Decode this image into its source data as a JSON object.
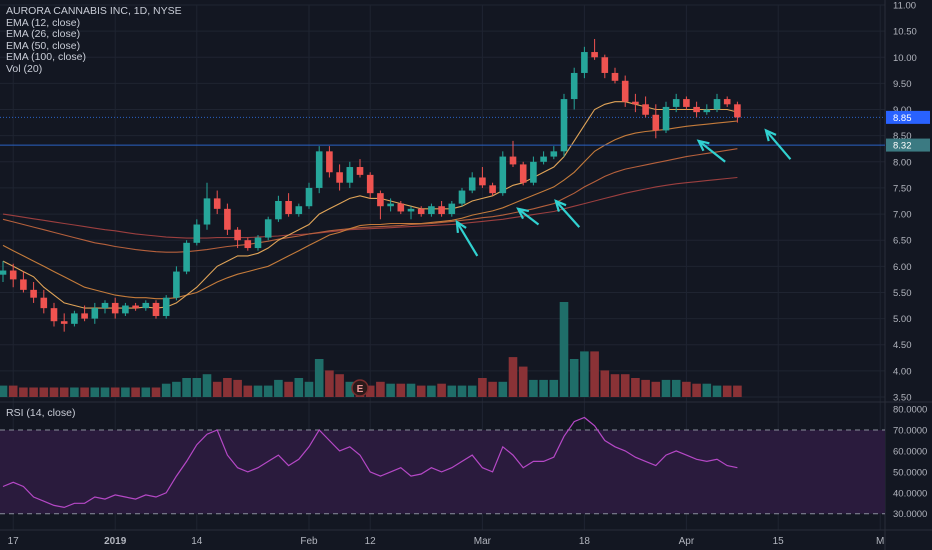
{
  "colors": {
    "background": "#131722",
    "grid": "#1f2431",
    "up": "#26a69a",
    "down": "#ef5350",
    "up_vol": "#1f6e69",
    "down_vol": "#8a3236",
    "ema12": "#e0a458",
    "ema26": "#c47b3b",
    "ema50": "#b5603c",
    "ema100": "#9c3f3f",
    "rsi_line": "#b548c6",
    "rsi_band": "#2a1b3d",
    "arrow": "#31d1d0",
    "hline": "#2a62c4",
    "axis_text": "#b2b5be",
    "last_price_bg": "#2962ff",
    "level_bg": "#3b7a82"
  },
  "legend": {
    "title": "AURORA CANNABIS INC, 1D, NYSE",
    "items": [
      "EMA (12, close)",
      "EMA (26, close)",
      "EMA (50, close)",
      "EMA (100, close)",
      "Vol (20)"
    ]
  },
  "rsi_panel": {
    "label": "RSI (14, close)"
  },
  "chart_data": {
    "type": "candlestick",
    "price_axis": {
      "ylim": [
        3.5,
        11.0
      ],
      "ticks": [
        "11.00",
        "10.50",
        "10.00",
        "9.50",
        "9.00",
        "8.50",
        "8.00",
        "7.50",
        "7.00",
        "6.50",
        "6.00",
        "5.50",
        "5.00",
        "4.50",
        "4.00",
        "3.50"
      ]
    },
    "rsi_axis": {
      "ylim": [
        27,
        81
      ],
      "ticks": [
        "80.0000",
        "70.0000",
        "60.0000",
        "50.0000",
        "40.0000",
        "30.0000"
      ],
      "band": [
        30,
        70
      ]
    },
    "x_ticks": [
      {
        "label": "17",
        "bar": 1
      },
      {
        "label": "2019",
        "bar": 11
      },
      {
        "label": "14",
        "bar": 19
      },
      {
        "label": "Feb",
        "bar": 30
      },
      {
        "label": "12",
        "bar": 36
      },
      {
        "label": "Mar",
        "bar": 47
      },
      {
        "label": "18",
        "bar": 57
      },
      {
        "label": "Apr",
        "bar": 67
      },
      {
        "label": "15",
        "bar": 76
      },
      {
        "label": "M",
        "bar": 86
      }
    ],
    "last_price": "8.85",
    "level_price": "8.32",
    "level_value": 8.32,
    "event_marker": {
      "label": "E",
      "bar": 35
    },
    "candles": [
      [
        5.84,
        6.1,
        5.7,
        5.92
      ],
      [
        5.92,
        6.05,
        5.6,
        5.75
      ],
      [
        5.75,
        5.9,
        5.5,
        5.55
      ],
      [
        5.55,
        5.7,
        5.3,
        5.4
      ],
      [
        5.4,
        5.55,
        5.1,
        5.2
      ],
      [
        5.2,
        5.3,
        4.85,
        4.95
      ],
      [
        4.95,
        5.1,
        4.75,
        4.9
      ],
      [
        4.9,
        5.15,
        4.85,
        5.1
      ],
      [
        5.1,
        5.25,
        4.95,
        5.0
      ],
      [
        5.0,
        5.3,
        4.9,
        5.2
      ],
      [
        5.2,
        5.35,
        5.1,
        5.3
      ],
      [
        5.3,
        5.4,
        5.0,
        5.1
      ],
      [
        5.1,
        5.3,
        5.05,
        5.25
      ],
      [
        5.25,
        5.3,
        5.15,
        5.2
      ],
      [
        5.2,
        5.35,
        5.15,
        5.3
      ],
      [
        5.3,
        5.35,
        5.0,
        5.05
      ],
      [
        5.05,
        5.45,
        5.0,
        5.4
      ],
      [
        5.4,
        6.0,
        5.35,
        5.9
      ],
      [
        5.9,
        6.5,
        5.85,
        6.45
      ],
      [
        6.45,
        6.9,
        6.4,
        6.8
      ],
      [
        6.8,
        7.6,
        6.7,
        7.3
      ],
      [
        7.3,
        7.45,
        7.0,
        7.1
      ],
      [
        7.1,
        7.2,
        6.6,
        6.7
      ],
      [
        6.7,
        6.75,
        6.35,
        6.5
      ],
      [
        6.5,
        6.55,
        6.3,
        6.35
      ],
      [
        6.35,
        6.6,
        6.3,
        6.55
      ],
      [
        6.55,
        6.95,
        6.5,
        6.9
      ],
      [
        6.9,
        7.35,
        6.85,
        7.25
      ],
      [
        7.25,
        7.4,
        6.95,
        7.0
      ],
      [
        7.0,
        7.2,
        6.95,
        7.15
      ],
      [
        7.15,
        7.6,
        7.1,
        7.5
      ],
      [
        7.5,
        8.3,
        7.4,
        8.2
      ],
      [
        8.2,
        8.3,
        7.7,
        7.8
      ],
      [
        7.8,
        7.95,
        7.45,
        7.6
      ],
      [
        7.6,
        8.0,
        7.5,
        7.9
      ],
      [
        7.9,
        8.05,
        7.7,
        7.75
      ],
      [
        7.75,
        7.8,
        7.3,
        7.4
      ],
      [
        7.4,
        7.45,
        6.9,
        7.15
      ],
      [
        7.15,
        7.3,
        7.05,
        7.2
      ],
      [
        7.2,
        7.25,
        7.0,
        7.05
      ],
      [
        7.05,
        7.15,
        6.9,
        7.1
      ],
      [
        7.1,
        7.15,
        6.95,
        7.0
      ],
      [
        7.0,
        7.2,
        6.95,
        7.15
      ],
      [
        7.15,
        7.25,
        6.95,
        7.0
      ],
      [
        7.0,
        7.25,
        6.95,
        7.2
      ],
      [
        7.2,
        7.5,
        7.15,
        7.45
      ],
      [
        7.45,
        7.8,
        7.4,
        7.7
      ],
      [
        7.7,
        7.9,
        7.5,
        7.55
      ],
      [
        7.55,
        7.6,
        7.35,
        7.4
      ],
      [
        7.4,
        8.2,
        7.35,
        8.1
      ],
      [
        8.1,
        8.4,
        7.9,
        7.95
      ],
      [
        7.95,
        8.0,
        7.55,
        7.6
      ],
      [
        7.6,
        8.1,
        7.55,
        8.0
      ],
      [
        8.0,
        8.2,
        7.95,
        8.1
      ],
      [
        8.1,
        8.3,
        8.05,
        8.2
      ],
      [
        8.2,
        9.3,
        8.1,
        9.2
      ],
      [
        9.2,
        9.8,
        9.0,
        9.7
      ],
      [
        9.7,
        10.2,
        9.6,
        10.1
      ],
      [
        10.1,
        10.35,
        9.95,
        10.0
      ],
      [
        10.0,
        10.05,
        9.6,
        9.7
      ],
      [
        9.7,
        9.8,
        9.5,
        9.55
      ],
      [
        9.55,
        9.65,
        9.05,
        9.15
      ],
      [
        9.15,
        9.3,
        8.95,
        9.1
      ],
      [
        9.1,
        9.25,
        8.85,
        8.9
      ],
      [
        8.9,
        9.1,
        8.45,
        8.6
      ],
      [
        8.6,
        9.15,
        8.55,
        9.05
      ],
      [
        9.05,
        9.3,
        8.95,
        9.2
      ],
      [
        9.2,
        9.25,
        9.0,
        9.05
      ],
      [
        9.05,
        9.15,
        8.85,
        8.95
      ],
      [
        8.95,
        9.1,
        8.9,
        9.0
      ],
      [
        9.0,
        9.3,
        8.95,
        9.2
      ],
      [
        9.2,
        9.25,
        9.05,
        9.1
      ],
      [
        9.1,
        9.15,
        8.75,
        8.85
      ]
    ],
    "ema12": [
      6.1,
      6.0,
      5.9,
      5.8,
      5.6,
      5.45,
      5.3,
      5.25,
      5.2,
      5.2,
      5.2,
      5.2,
      5.2,
      5.2,
      5.22,
      5.2,
      5.22,
      5.3,
      5.45,
      5.6,
      5.8,
      6.0,
      6.1,
      6.2,
      6.2,
      6.25,
      6.35,
      6.5,
      6.6,
      6.7,
      6.8,
      7.0,
      7.1,
      7.2,
      7.3,
      7.35,
      7.3,
      7.3,
      7.25,
      7.2,
      7.15,
      7.1,
      7.1,
      7.1,
      7.1,
      7.15,
      7.25,
      7.3,
      7.35,
      7.45,
      7.55,
      7.6,
      7.7,
      7.8,
      7.9,
      8.1,
      8.4,
      8.7,
      9.0,
      9.1,
      9.15,
      9.15,
      9.1,
      9.05,
      9.0,
      9.0,
      9.0,
      9.0,
      9.0,
      9.0,
      9.0,
      9.0,
      8.95
    ],
    "ema26": [
      6.4,
      6.3,
      6.2,
      6.1,
      6.0,
      5.9,
      5.8,
      5.7,
      5.6,
      5.55,
      5.5,
      5.45,
      5.42,
      5.4,
      5.4,
      5.38,
      5.38,
      5.4,
      5.45,
      5.5,
      5.6,
      5.7,
      5.78,
      5.85,
      5.9,
      5.95,
      6.0,
      6.1,
      6.2,
      6.3,
      6.4,
      6.5,
      6.6,
      6.65,
      6.72,
      6.78,
      6.8,
      6.8,
      6.82,
      6.82,
      6.82,
      6.82,
      6.84,
      6.86,
      6.88,
      6.92,
      6.98,
      7.02,
      7.06,
      7.12,
      7.2,
      7.28,
      7.36,
      7.44,
      7.52,
      7.65,
      7.8,
      8.0,
      8.2,
      8.32,
      8.42,
      8.5,
      8.55,
      8.58,
      8.6,
      8.62,
      8.65,
      8.68,
      8.7,
      8.72,
      8.74,
      8.76,
      8.78
    ],
    "ema50": [
      6.9,
      6.85,
      6.8,
      6.75,
      6.7,
      6.65,
      6.6,
      6.55,
      6.5,
      6.45,
      6.42,
      6.38,
      6.35,
      6.32,
      6.3,
      6.28,
      6.27,
      6.27,
      6.28,
      6.3,
      6.32,
      6.35,
      6.38,
      6.4,
      6.42,
      6.45,
      6.48,
      6.52,
      6.55,
      6.58,
      6.62,
      6.65,
      6.68,
      6.7,
      6.72,
      6.74,
      6.75,
      6.76,
      6.77,
      6.78,
      6.8,
      6.81,
      6.82,
      6.84,
      6.86,
      6.88,
      6.9,
      6.93,
      6.95,
      6.98,
      7.02,
      7.06,
      7.1,
      7.15,
      7.2,
      7.3,
      7.4,
      7.52,
      7.62,
      7.72,
      7.8,
      7.86,
      7.9,
      7.94,
      7.98,
      8.02,
      8.06,
      8.1,
      8.13,
      8.16,
      8.19,
      8.22,
      8.25
    ],
    "ema100": [
      7.0,
      6.97,
      6.94,
      6.91,
      6.88,
      6.85,
      6.82,
      6.79,
      6.76,
      6.73,
      6.7,
      6.68,
      6.65,
      6.62,
      6.6,
      6.58,
      6.56,
      6.55,
      6.54,
      6.54,
      6.54,
      6.55,
      6.55,
      6.55,
      6.55,
      6.56,
      6.57,
      6.58,
      6.6,
      6.61,
      6.62,
      6.64,
      6.66,
      6.68,
      6.7,
      6.71,
      6.72,
      6.73,
      6.74,
      6.75,
      6.76,
      6.77,
      6.78,
      6.79,
      6.8,
      6.82,
      6.84,
      6.86,
      6.88,
      6.9,
      6.93,
      6.96,
      6.99,
      7.02,
      7.05,
      7.1,
      7.15,
      7.2,
      7.25,
      7.3,
      7.35,
      7.4,
      7.44,
      7.48,
      7.52,
      7.55,
      7.58,
      7.6,
      7.62,
      7.64,
      7.66,
      7.68,
      7.7
    ],
    "volume": [
      3,
      3,
      2.5,
      2.5,
      2.5,
      2.5,
      2.5,
      2.5,
      2.5,
      2.5,
      2.5,
      2.5,
      2.5,
      2.5,
      2.5,
      2.5,
      3.5,
      4,
      5,
      5,
      6,
      4,
      5,
      4.5,
      3,
      3,
      3,
      4.5,
      4,
      5,
      4,
      10,
      7,
      6,
      4,
      3,
      3,
      4,
      3.5,
      3.5,
      3.5,
      3,
      3,
      3.5,
      3,
      3,
      3,
      5,
      4,
      4,
      10.5,
      8,
      4.5,
      4.5,
      4.5,
      25,
      10,
      12,
      12,
      7,
      6,
      6,
      5,
      4.5,
      4,
      4.5,
      4.5,
      4,
      3.5,
      3.5,
      3,
      3,
      3
    ],
    "rsi": [
      43,
      45,
      43,
      38,
      36,
      34,
      33,
      35,
      35,
      38,
      37,
      39,
      38,
      37,
      39,
      38,
      40,
      48,
      55,
      63,
      68,
      70,
      58,
      52,
      50,
      52,
      55,
      58,
      53,
      56,
      62,
      70,
      65,
      60,
      62,
      58,
      50,
      48,
      50,
      52,
      48,
      49,
      52,
      50,
      52,
      55,
      58,
      52,
      50,
      62,
      58,
      52,
      55,
      55,
      57,
      67,
      74,
      76,
      72,
      65,
      62,
      60,
      57,
      55,
      53,
      58,
      60,
      58,
      56,
      55,
      56,
      53,
      52
    ]
  },
  "annotations": {
    "arrows": [
      {
        "from": [
          46.5,
          6.2
        ],
        "to": [
          44.5,
          6.85
        ]
      },
      {
        "from": [
          52.5,
          6.8
        ],
        "to": [
          50.5,
          7.1
        ]
      },
      {
        "from": [
          56.5,
          6.75
        ],
        "to": [
          54.2,
          7.25
        ]
      },
      {
        "from": [
          70.8,
          8.0
        ],
        "to": [
          68.2,
          8.4
        ]
      },
      {
        "from": [
          77.2,
          8.05
        ],
        "to": [
          74.8,
          8.6
        ]
      }
    ]
  }
}
